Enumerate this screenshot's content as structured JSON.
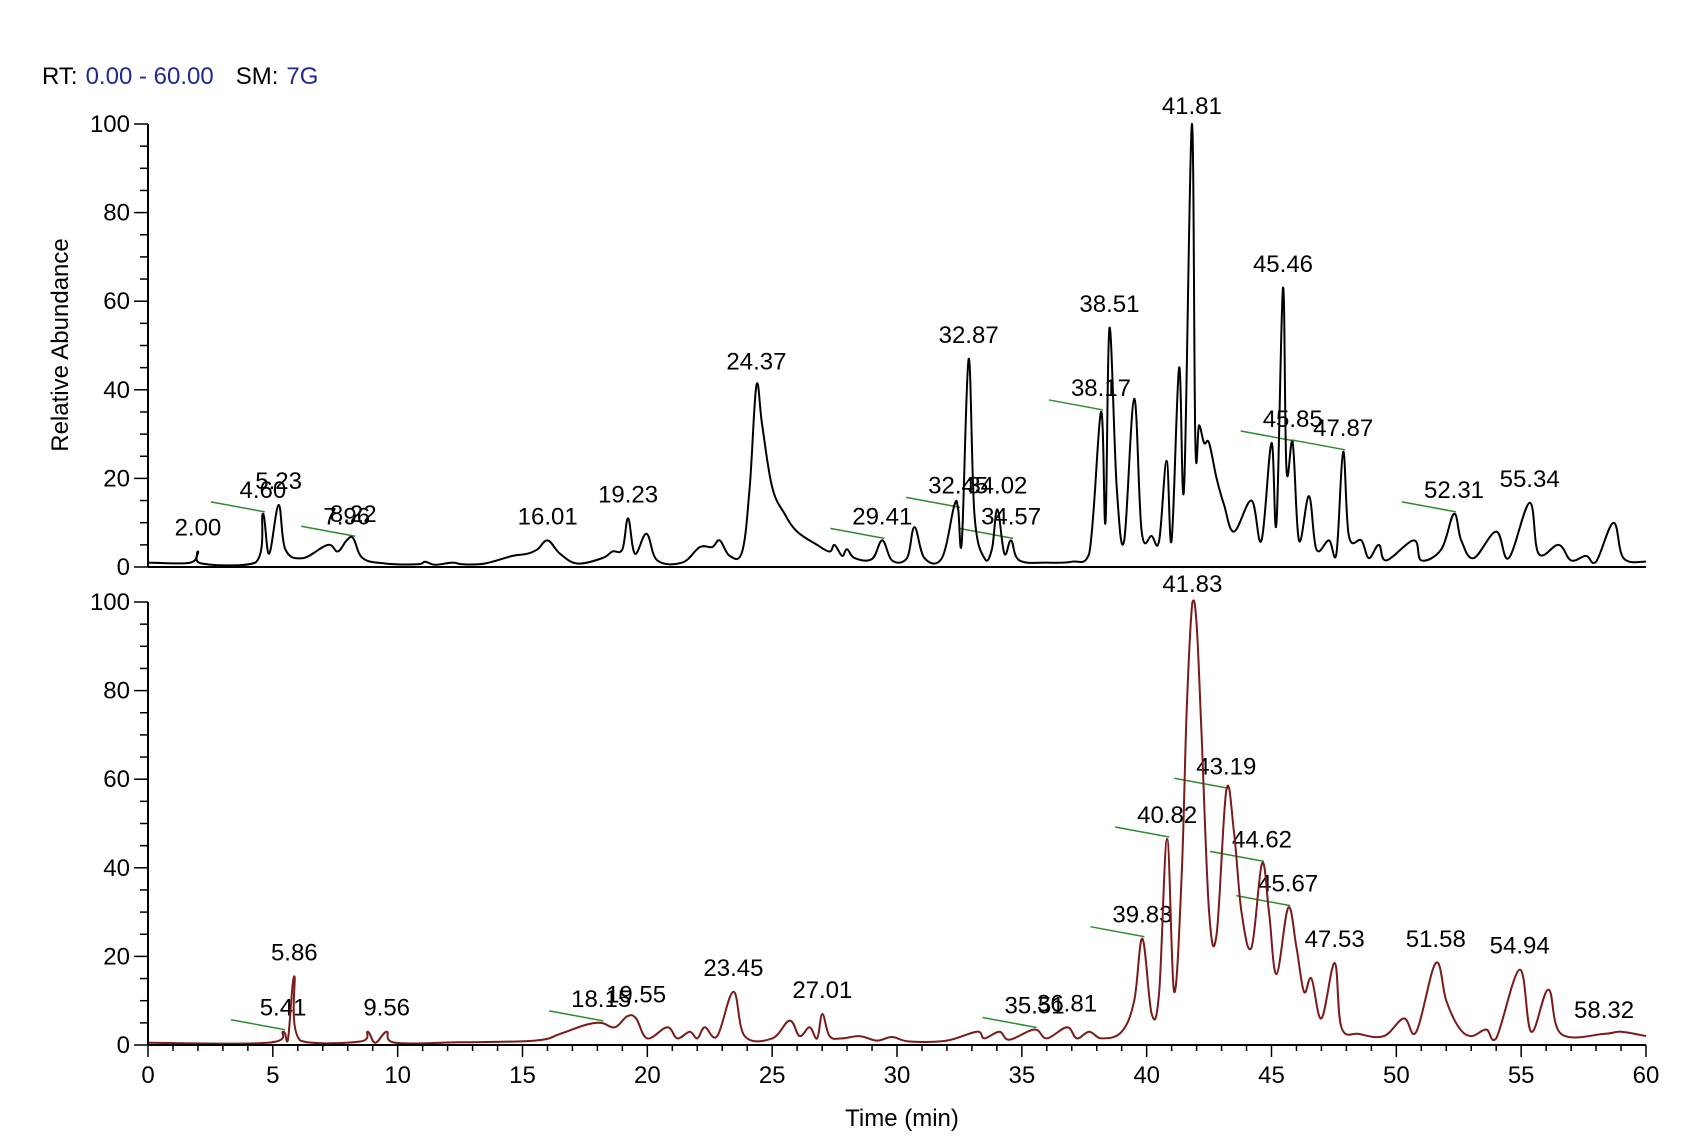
{
  "header": {
    "rt_label": "RT:",
    "rt_value": "0.00 - 60.00",
    "sm_label": "SM:",
    "sm_value": "7G"
  },
  "colors": {
    "top_trace": "#000000",
    "bottom_trace": "#7a1a1a",
    "header_value": "#1f2a8c",
    "label_tick": "#2e8b2e"
  },
  "chart_data": [
    {
      "type": "line",
      "xlabel": "",
      "ylabel": "Relative Abundance",
      "xlim": [
        0,
        60
      ],
      "ylim": [
        0,
        100
      ],
      "yticks": [
        0,
        20,
        40,
        60,
        80,
        100
      ],
      "xticks": [],
      "grid": false,
      "legend": "none",
      "baseline": 1,
      "points": [
        [
          0,
          1
        ],
        [
          1.7,
          1
        ],
        [
          2.0,
          3.5
        ],
        [
          2.15,
          0.8
        ],
        [
          4.3,
          1
        ],
        [
          4.6,
          12
        ],
        [
          4.85,
          3
        ],
        [
          5.23,
          14
        ],
        [
          5.5,
          4
        ],
        [
          6.2,
          2
        ],
        [
          7.2,
          5
        ],
        [
          7.6,
          3.5
        ],
        [
          7.96,
          6
        ],
        [
          8.22,
          6.5
        ],
        [
          8.6,
          2
        ],
        [
          9.5,
          0.8
        ],
        [
          10.8,
          0.6
        ],
        [
          11.1,
          1.2
        ],
        [
          11.5,
          0.5
        ],
        [
          12.2,
          1
        ],
        [
          12.6,
          0.6
        ],
        [
          13.5,
          0.8
        ],
        [
          14.6,
          2.5
        ],
        [
          15.2,
          3
        ],
        [
          15.6,
          4
        ],
        [
          16.01,
          6
        ],
        [
          16.5,
          3
        ],
        [
          17.2,
          0.8
        ],
        [
          18.2,
          2
        ],
        [
          18.6,
          3.5
        ],
        [
          19.0,
          4
        ],
        [
          19.23,
          11
        ],
        [
          19.5,
          3
        ],
        [
          19.97,
          7.5
        ],
        [
          20.4,
          1.5
        ],
        [
          21.4,
          1
        ],
        [
          22.1,
          4.5
        ],
        [
          22.6,
          4.5
        ],
        [
          22.9,
          6
        ],
        [
          23.3,
          2.5
        ],
        [
          23.8,
          3.5
        ],
        [
          24.1,
          18
        ],
        [
          24.37,
          41
        ],
        [
          24.6,
          32
        ],
        [
          25.0,
          18
        ],
        [
          25.5,
          12
        ],
        [
          26.0,
          8
        ],
        [
          26.8,
          5
        ],
        [
          27.3,
          3.5
        ],
        [
          27.5,
          5
        ],
        [
          27.8,
          2.5
        ],
        [
          28.0,
          4
        ],
        [
          28.3,
          2
        ],
        [
          29.0,
          1.8
        ],
        [
          29.41,
          6
        ],
        [
          29.8,
          1.5
        ],
        [
          30.4,
          2
        ],
        [
          30.7,
          9
        ],
        [
          31.1,
          2
        ],
        [
          31.8,
          2
        ],
        [
          32.3,
          14
        ],
        [
          32.45,
          13
        ],
        [
          32.6,
          6
        ],
        [
          32.87,
          47
        ],
        [
          33.1,
          12
        ],
        [
          33.5,
          2
        ],
        [
          33.8,
          4
        ],
        [
          34.02,
          13
        ],
        [
          34.3,
          3
        ],
        [
          34.57,
          6
        ],
        [
          34.9,
          1.5
        ],
        [
          36.0,
          1
        ],
        [
          37.0,
          1.2
        ],
        [
          37.7,
          3
        ],
        [
          38.17,
          35
        ],
        [
          38.35,
          10
        ],
        [
          38.51,
          54
        ],
        [
          38.8,
          18
        ],
        [
          39.1,
          6
        ],
        [
          39.5,
          38
        ],
        [
          39.8,
          8
        ],
        [
          40.2,
          7
        ],
        [
          40.5,
          6
        ],
        [
          40.8,
          24
        ],
        [
          41.0,
          6
        ],
        [
          41.3,
          45
        ],
        [
          41.5,
          18
        ],
        [
          41.81,
          100
        ],
        [
          41.95,
          28
        ],
        [
          42.1,
          32
        ],
        [
          42.3,
          28
        ],
        [
          42.5,
          28
        ],
        [
          42.8,
          20
        ],
        [
          43.1,
          14
        ],
        [
          43.5,
          8
        ],
        [
          44.2,
          15
        ],
        [
          44.6,
          6
        ],
        [
          45.0,
          28
        ],
        [
          45.2,
          10
        ],
        [
          45.46,
          63
        ],
        [
          45.6,
          22
        ],
        [
          45.85,
          28
        ],
        [
          46.1,
          6
        ],
        [
          46.5,
          16
        ],
        [
          46.8,
          4
        ],
        [
          47.3,
          6
        ],
        [
          47.6,
          3
        ],
        [
          47.87,
          26
        ],
        [
          48.1,
          7
        ],
        [
          48.6,
          6
        ],
        [
          48.9,
          2
        ],
        [
          49.3,
          5
        ],
        [
          49.6,
          1.5
        ],
        [
          50.7,
          6
        ],
        [
          51.0,
          1.5
        ],
        [
          51.8,
          4
        ],
        [
          52.31,
          12
        ],
        [
          52.6,
          6
        ],
        [
          53.1,
          2
        ],
        [
          54.0,
          8
        ],
        [
          54.5,
          2
        ],
        [
          55.34,
          14.5
        ],
        [
          55.7,
          3
        ],
        [
          56.5,
          5
        ],
        [
          57.0,
          1.5
        ],
        [
          57.6,
          2.5
        ],
        [
          58.0,
          1.2
        ],
        [
          58.7,
          10
        ],
        [
          59.1,
          2
        ],
        [
          60,
          1.2
        ]
      ],
      "peak_labels": [
        {
          "text": "2.00",
          "x": 2.0,
          "y": 3.5,
          "leader": false
        },
        {
          "text": "4.60",
          "x": 4.6,
          "y": 12,
          "leader": true
        },
        {
          "text": "5.23",
          "x": 5.23,
          "y": 14,
          "leader": false
        },
        {
          "text": "7.96",
          "x": 7.96,
          "y": 6,
          "leader": false
        },
        {
          "text": "8.22",
          "x": 8.22,
          "y": 6.5,
          "leader": true
        },
        {
          "text": "16.01",
          "x": 16.01,
          "y": 6,
          "leader": false
        },
        {
          "text": "19.23",
          "x": 19.23,
          "y": 11,
          "leader": false
        },
        {
          "text": "24.37",
          "x": 24.37,
          "y": 41,
          "leader": false
        },
        {
          "text": "29.41",
          "x": 29.41,
          "y": 6,
          "leader": true
        },
        {
          "text": "32.45",
          "x": 32.45,
          "y": 13,
          "leader": true
        },
        {
          "text": "32.87",
          "x": 32.87,
          "y": 47,
          "leader": false
        },
        {
          "text": "34.02",
          "x": 34.02,
          "y": 13,
          "leader": false
        },
        {
          "text": "34.57",
          "x": 34.57,
          "y": 6,
          "leader": true
        },
        {
          "text": "38.17",
          "x": 38.17,
          "y": 35,
          "leader": true
        },
        {
          "text": "38.51",
          "x": 38.51,
          "y": 54,
          "leader": false
        },
        {
          "text": "41.81",
          "x": 41.81,
          "y": 100,
          "leader": false
        },
        {
          "text": "45.46",
          "x": 45.46,
          "y": 63,
          "leader": false
        },
        {
          "text": "45.85",
          "x": 45.85,
          "y": 28,
          "leader": true
        },
        {
          "text": "47.87",
          "x": 47.87,
          "y": 26,
          "leader": true
        },
        {
          "text": "52.31",
          "x": 52.31,
          "y": 12,
          "leader": true
        },
        {
          "text": "55.34",
          "x": 55.34,
          "y": 14.5,
          "leader": false
        }
      ]
    },
    {
      "type": "line",
      "xlabel": "Time (min)",
      "ylabel": "",
      "xlim": [
        0,
        60
      ],
      "ylim": [
        0,
        100
      ],
      "yticks": [
        0,
        20,
        40,
        60,
        80,
        100
      ],
      "xticks": [
        0,
        5,
        10,
        15,
        20,
        25,
        30,
        35,
        40,
        45,
        50,
        55,
        60
      ],
      "grid": false,
      "legend": "none",
      "baseline": 0.5,
      "points": [
        [
          0,
          0.5
        ],
        [
          4.8,
          0.5
        ],
        [
          5.41,
          3
        ],
        [
          5.6,
          1
        ],
        [
          5.86,
          15.5
        ],
        [
          6.1,
          1
        ],
        [
          8.5,
          0.8
        ],
        [
          8.8,
          3
        ],
        [
          9.1,
          0.5
        ],
        [
          9.56,
          3
        ],
        [
          9.9,
          0.5
        ],
        [
          12.4,
          0.6
        ],
        [
          15.5,
          1
        ],
        [
          16.5,
          2.5
        ],
        [
          17.5,
          4.5
        ],
        [
          18.15,
          5
        ],
        [
          18.7,
          4
        ],
        [
          19.2,
          6.5
        ],
        [
          19.55,
          6
        ],
        [
          20.0,
          1.5
        ],
        [
          20.8,
          4
        ],
        [
          21.2,
          1.5
        ],
        [
          21.7,
          3
        ],
        [
          22.0,
          1.5
        ],
        [
          22.3,
          4
        ],
        [
          22.8,
          2
        ],
        [
          23.45,
          12
        ],
        [
          23.9,
          2
        ],
        [
          25.0,
          1.5
        ],
        [
          25.7,
          5.5
        ],
        [
          26.1,
          2
        ],
        [
          26.5,
          4
        ],
        [
          26.8,
          1.5
        ],
        [
          27.01,
          7
        ],
        [
          27.3,
          2
        ],
        [
          27.8,
          1.5
        ],
        [
          28.5,
          2
        ],
        [
          29.2,
          1
        ],
        [
          29.8,
          1.8
        ],
        [
          30.5,
          0.8
        ],
        [
          32.0,
          1
        ],
        [
          33.2,
          3
        ],
        [
          33.5,
          1.5
        ],
        [
          34.1,
          3
        ],
        [
          34.5,
          1.2
        ],
        [
          35.51,
          3.5
        ],
        [
          36.0,
          1.5
        ],
        [
          36.81,
          4
        ],
        [
          37.2,
          1.5
        ],
        [
          37.7,
          3
        ],
        [
          38.2,
          1.5
        ],
        [
          39.0,
          3
        ],
        [
          39.5,
          10
        ],
        [
          39.83,
          24
        ],
        [
          40.2,
          7
        ],
        [
          40.5,
          12
        ],
        [
          40.82,
          46.5
        ],
        [
          41.1,
          12
        ],
        [
          41.4,
          38
        ],
        [
          41.6,
          75
        ],
        [
          41.83,
          100
        ],
        [
          42.0,
          95
        ],
        [
          42.2,
          70
        ],
        [
          42.5,
          30
        ],
        [
          42.8,
          25
        ],
        [
          43.19,
          57.5
        ],
        [
          43.5,
          48
        ],
        [
          43.8,
          30
        ],
        [
          44.2,
          22
        ],
        [
          44.62,
          41
        ],
        [
          44.9,
          30
        ],
        [
          45.2,
          16
        ],
        [
          45.67,
          31
        ],
        [
          46.0,
          22
        ],
        [
          46.3,
          12
        ],
        [
          46.6,
          15
        ],
        [
          47.0,
          6
        ],
        [
          47.53,
          18.5
        ],
        [
          47.8,
          4
        ],
        [
          48.5,
          2.5
        ],
        [
          49.5,
          2
        ],
        [
          50.3,
          6
        ],
        [
          50.8,
          3
        ],
        [
          51.58,
          18.5
        ],
        [
          52.0,
          10
        ],
        [
          52.5,
          4
        ],
        [
          53.0,
          2
        ],
        [
          53.6,
          3.5
        ],
        [
          54.0,
          1.5
        ],
        [
          54.94,
          17
        ],
        [
          55.4,
          3
        ],
        [
          56.09,
          12.5
        ],
        [
          56.6,
          2.5
        ],
        [
          58.32,
          2.5
        ],
        [
          59.0,
          3
        ],
        [
          60,
          2
        ]
      ],
      "peak_labels": [
        {
          "text": "5.41",
          "x": 5.41,
          "y": 3,
          "leader": true
        },
        {
          "text": "5.86",
          "x": 5.86,
          "y": 15.5,
          "leader": false
        },
        {
          "text": "9.56",
          "x": 9.56,
          "y": 3,
          "leader": false
        },
        {
          "text": "18.15",
          "x": 18.15,
          "y": 5,
          "leader": true
        },
        {
          "text": "19.55",
          "x": 19.55,
          "y": 6,
          "leader": false
        },
        {
          "text": "23.45",
          "x": 23.45,
          "y": 12,
          "leader": false
        },
        {
          "text": "27.01",
          "x": 27.01,
          "y": 7,
          "leader": false
        },
        {
          "text": "35.51",
          "x": 35.51,
          "y": 3.5,
          "leader": true
        },
        {
          "text": "36.81",
          "x": 36.81,
          "y": 4,
          "leader": false
        },
        {
          "text": "39.83",
          "x": 39.83,
          "y": 24,
          "leader": true
        },
        {
          "text": "40.82",
          "x": 40.82,
          "y": 46.5,
          "leader": true
        },
        {
          "text": "41.83",
          "x": 41.83,
          "y": 100,
          "leader": false
        },
        {
          "text": "43.19",
          "x": 43.19,
          "y": 57.5,
          "leader": true
        },
        {
          "text": "44.62",
          "x": 44.62,
          "y": 41,
          "leader": true
        },
        {
          "text": "45.67",
          "x": 45.67,
          "y": 31,
          "leader": true
        },
        {
          "text": "47.53",
          "x": 47.53,
          "y": 18.5,
          "leader": false
        },
        {
          "text": "51.58",
          "x": 51.58,
          "y": 18.5,
          "leader": false
        },
        {
          "text": "54.94",
          "x": 54.94,
          "y": 17,
          "leader": false
        },
        {
          "text": "58.32",
          "x": 58.32,
          "y": 2.5,
          "leader": false
        }
      ]
    }
  ]
}
